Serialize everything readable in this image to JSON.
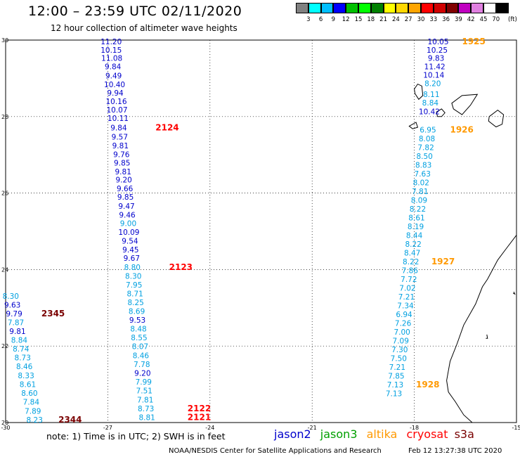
{
  "title": "12:00 – 23:59 UTC 02/11/2020",
  "subtitle": "12 hour collection of altimeter wave heights",
  "legend": {
    "colors": [
      "#808080",
      "#00ffff",
      "#00bfff",
      "#0000ff",
      "#00c000",
      "#00ff00",
      "#008000",
      "#ffff00",
      "#ffd700",
      "#ffa500",
      "#ff0000",
      "#d00000",
      "#800000",
      "#c000c0",
      "#e080e0",
      "#ffffff",
      "#000000"
    ],
    "labels": [
      "3",
      "6",
      "9",
      "12",
      "15",
      "18",
      "21",
      "24",
      "27",
      "30",
      "33",
      "36",
      "39",
      "42",
      "45",
      "70"
    ],
    "unit": "(ft)"
  },
  "axes": {
    "x_ticks": [
      "-30",
      "-27",
      "-24",
      "-21",
      "-18",
      "-15"
    ],
    "y_ticks": [
      "30",
      "28",
      "26",
      "24",
      "22",
      "20"
    ]
  },
  "colors": {
    "jason2": "#0000cc",
    "jason3": "#00a000",
    "altika": "#ff9900",
    "cryosat": "#ff0000",
    "s3a": "#7a0000",
    "light": "#00a0e0"
  },
  "tracks": [
    {
      "name": "track-2124-2123",
      "color": "jason2",
      "points": [
        {
          "lon": -26.9,
          "lat": 29.96,
          "v": "11.20",
          "c": "jason2"
        },
        {
          "lon": -26.9,
          "lat": 29.74,
          "v": "10.15",
          "c": "jason2"
        },
        {
          "lon": -26.88,
          "lat": 29.53,
          "v": "11.08",
          "c": "jason2"
        },
        {
          "lon": -26.85,
          "lat": 29.31,
          "v": "9.84",
          "c": "jason2"
        },
        {
          "lon": -26.83,
          "lat": 29.07,
          "v": "9.49",
          "c": "jason2"
        },
        {
          "lon": -26.8,
          "lat": 28.84,
          "v": "10.40",
          "c": "jason2"
        },
        {
          "lon": -26.78,
          "lat": 28.62,
          "v": "9.94",
          "c": "jason2"
        },
        {
          "lon": -26.75,
          "lat": 28.4,
          "v": "10.16",
          "c": "jason2"
        },
        {
          "lon": -26.73,
          "lat": 28.18,
          "v": "10.07",
          "c": "jason2"
        },
        {
          "lon": -26.7,
          "lat": 27.96,
          "v": "10.11",
          "c": "jason2"
        },
        {
          "lon": -26.68,
          "lat": 27.71,
          "v": "9.84",
          "c": "jason2"
        },
        {
          "lon": -26.65,
          "lat": 27.47,
          "v": "9.57",
          "c": "jason2"
        },
        {
          "lon": -26.63,
          "lat": 27.24,
          "v": "9.81",
          "c": "jason2"
        },
        {
          "lon": -26.6,
          "lat": 27.01,
          "v": "9.76",
          "c": "jason2"
        },
        {
          "lon": -26.58,
          "lat": 26.79,
          "v": "9.85",
          "c": "jason2"
        },
        {
          "lon": -26.55,
          "lat": 26.56,
          "v": "9.81",
          "c": "jason2"
        },
        {
          "lon": -26.53,
          "lat": 26.35,
          "v": "9.20",
          "c": "jason2"
        },
        {
          "lon": -26.5,
          "lat": 26.12,
          "v": "9.66",
          "c": "jason2"
        },
        {
          "lon": -26.48,
          "lat": 25.9,
          "v": "9.85",
          "c": "jason2"
        },
        {
          "lon": -26.45,
          "lat": 25.66,
          "v": "9.47",
          "c": "jason2"
        },
        {
          "lon": -26.43,
          "lat": 25.43,
          "v": "9.46",
          "c": "jason2"
        },
        {
          "lon": -26.4,
          "lat": 25.21,
          "v": "9.00",
          "c": "light"
        },
        {
          "lon": -26.38,
          "lat": 24.98,
          "v": "10.09",
          "c": "jason2"
        },
        {
          "lon": -26.35,
          "lat": 24.75,
          "v": "9.54",
          "c": "jason2"
        },
        {
          "lon": -26.33,
          "lat": 24.52,
          "v": "9.45",
          "c": "jason2"
        },
        {
          "lon": -26.3,
          "lat": 24.3,
          "v": "9.67",
          "c": "jason2"
        },
        {
          "lon": -26.28,
          "lat": 24.06,
          "v": "8.80",
          "c": "light"
        },
        {
          "lon": -26.25,
          "lat": 23.83,
          "v": "8.30",
          "c": "light"
        },
        {
          "lon": -26.23,
          "lat": 23.6,
          "v": "7.95",
          "c": "light"
        },
        {
          "lon": -26.2,
          "lat": 23.37,
          "v": "8.71",
          "c": "light"
        },
        {
          "lon": -26.18,
          "lat": 23.14,
          "v": "8.25",
          "c": "light"
        },
        {
          "lon": -26.15,
          "lat": 22.91,
          "v": "8.69",
          "c": "light"
        },
        {
          "lon": -26.13,
          "lat": 22.68,
          "v": "9.53",
          "c": "jason2"
        },
        {
          "lon": -26.1,
          "lat": 22.45,
          "v": "8.48",
          "c": "light"
        },
        {
          "lon": -26.08,
          "lat": 22.22,
          "v": "8.55",
          "c": "light"
        },
        {
          "lon": -26.05,
          "lat": 21.99,
          "v": "8.07",
          "c": "light"
        },
        {
          "lon": -26.03,
          "lat": 21.76,
          "v": "8.46",
          "c": "light"
        },
        {
          "lon": -26.0,
          "lat": 21.53,
          "v": "7.78",
          "c": "light"
        },
        {
          "lon": -25.98,
          "lat": 21.3,
          "v": "9.20",
          "c": "jason2"
        },
        {
          "lon": -25.95,
          "lat": 21.07,
          "v": "7.99",
          "c": "light"
        },
        {
          "lon": -25.93,
          "lat": 20.84,
          "v": "7.51",
          "c": "light"
        },
        {
          "lon": -25.9,
          "lat": 20.6,
          "v": "7.81",
          "c": "light"
        },
        {
          "lon": -25.88,
          "lat": 20.37,
          "v": "8.73",
          "c": "light"
        },
        {
          "lon": -25.85,
          "lat": 20.14,
          "v": "8.81",
          "c": "light"
        }
      ],
      "labels": [
        {
          "lon": -25.6,
          "lat": 27.71,
          "v": "2124",
          "c": "cryosat"
        },
        {
          "lon": -25.2,
          "lat": 24.06,
          "v": "2123",
          "c": "cryosat"
        },
        {
          "lon": -24.66,
          "lat": 20.37,
          "v": "2122",
          "c": "cryosat"
        },
        {
          "lon": -24.66,
          "lat": 20.14,
          "v": "2121",
          "c": "cryosat"
        }
      ]
    },
    {
      "name": "track-2345-2344",
      "color": "s3a",
      "points": [
        {
          "lon": -29.85,
          "lat": 23.31,
          "v": "8.30",
          "c": "light"
        },
        {
          "lon": -29.8,
          "lat": 23.08,
          "v": "9.63",
          "c": "jason2"
        },
        {
          "lon": -29.75,
          "lat": 22.85,
          "v": "9.79",
          "c": "jason2"
        },
        {
          "lon": -29.7,
          "lat": 22.62,
          "v": "7.87",
          "c": "light"
        },
        {
          "lon": -29.65,
          "lat": 22.39,
          "v": "9.81",
          "c": "jason2"
        },
        {
          "lon": -29.6,
          "lat": 22.16,
          "v": "8.84",
          "c": "light"
        },
        {
          "lon": -29.55,
          "lat": 21.93,
          "v": "8.74",
          "c": "light"
        },
        {
          "lon": -29.5,
          "lat": 21.7,
          "v": "8.73",
          "c": "light"
        },
        {
          "lon": -29.45,
          "lat": 21.47,
          "v": "8.46",
          "c": "light"
        },
        {
          "lon": -29.4,
          "lat": 21.23,
          "v": "8.33",
          "c": "light"
        },
        {
          "lon": -29.35,
          "lat": 21.0,
          "v": "8.61",
          "c": "light"
        },
        {
          "lon": -29.3,
          "lat": 20.77,
          "v": "8.60",
          "c": "light"
        },
        {
          "lon": -29.25,
          "lat": 20.54,
          "v": "7.84",
          "c": "light"
        },
        {
          "lon": -29.2,
          "lat": 20.3,
          "v": "7.89",
          "c": "light"
        },
        {
          "lon": -29.15,
          "lat": 20.07,
          "v": "8.23",
          "c": "light"
        }
      ],
      "labels": [
        {
          "lon": -28.95,
          "lat": 22.85,
          "v": "2345",
          "c": "s3a"
        },
        {
          "lon": -28.45,
          "lat": 20.07,
          "v": "2344",
          "c": "s3a"
        }
      ]
    },
    {
      "name": "track-1925-1928",
      "color": "altika",
      "points": [
        {
          "lon": -17.3,
          "lat": 29.96,
          "v": "10.05",
          "c": "jason2"
        },
        {
          "lon": -17.33,
          "lat": 29.74,
          "v": "10.25",
          "c": "jason2"
        },
        {
          "lon": -17.36,
          "lat": 29.53,
          "v": "9.83",
          "c": "jason2"
        },
        {
          "lon": -17.4,
          "lat": 29.31,
          "v": "11.42",
          "c": "jason2"
        },
        {
          "lon": -17.43,
          "lat": 29.09,
          "v": "10.14",
          "c": "jason2"
        },
        {
          "lon": -17.46,
          "lat": 28.87,
          "v": "8.20",
          "c": "light"
        },
        {
          "lon": -17.5,
          "lat": 28.58,
          "v": "8.11",
          "c": "light"
        },
        {
          "lon": -17.53,
          "lat": 28.36,
          "v": "8.84",
          "c": "light"
        },
        {
          "lon": -17.56,
          "lat": 28.13,
          "v": "10.42",
          "c": "jason2"
        },
        {
          "lon": -17.6,
          "lat": 27.66,
          "v": "6.95",
          "c": "light"
        },
        {
          "lon": -17.63,
          "lat": 27.43,
          "v": "8.08",
          "c": "light"
        },
        {
          "lon": -17.66,
          "lat": 27.2,
          "v": "7.82",
          "c": "light"
        },
        {
          "lon": -17.7,
          "lat": 26.97,
          "v": "8.50",
          "c": "light"
        },
        {
          "lon": -17.73,
          "lat": 26.74,
          "v": "8.83",
          "c": "light"
        },
        {
          "lon": -17.76,
          "lat": 26.51,
          "v": "7.63",
          "c": "light"
        },
        {
          "lon": -17.8,
          "lat": 26.28,
          "v": "8.02",
          "c": "light"
        },
        {
          "lon": -17.83,
          "lat": 26.05,
          "v": "7.81",
          "c": "light"
        },
        {
          "lon": -17.86,
          "lat": 25.82,
          "v": "8.09",
          "c": "light"
        },
        {
          "lon": -17.9,
          "lat": 25.59,
          "v": "8.22",
          "c": "light"
        },
        {
          "lon": -17.93,
          "lat": 25.36,
          "v": "8.61",
          "c": "light"
        },
        {
          "lon": -17.96,
          "lat": 25.13,
          "v": "8.19",
          "c": "light"
        },
        {
          "lon": -18.0,
          "lat": 24.9,
          "v": "8.44",
          "c": "light"
        },
        {
          "lon": -18.03,
          "lat": 24.67,
          "v": "8.22",
          "c": "light"
        },
        {
          "lon": -18.06,
          "lat": 24.44,
          "v": "8.47",
          "c": "light"
        },
        {
          "lon": -18.1,
          "lat": 24.21,
          "v": "8.22",
          "c": "light"
        },
        {
          "lon": -18.13,
          "lat": 23.98,
          "v": "7.86",
          "c": "light"
        },
        {
          "lon": -18.16,
          "lat": 23.75,
          "v": "7.72",
          "c": "light"
        },
        {
          "lon": -18.2,
          "lat": 23.52,
          "v": "7.02",
          "c": "light"
        },
        {
          "lon": -18.23,
          "lat": 23.29,
          "v": "7.21",
          "c": "light"
        },
        {
          "lon": -18.26,
          "lat": 23.06,
          "v": "7.34",
          "c": "light"
        },
        {
          "lon": -18.3,
          "lat": 22.83,
          "v": "6.94",
          "c": "light"
        },
        {
          "lon": -18.33,
          "lat": 22.6,
          "v": "7.26",
          "c": "light"
        },
        {
          "lon": -18.36,
          "lat": 22.37,
          "v": "7.00",
          "c": "light"
        },
        {
          "lon": -18.4,
          "lat": 22.14,
          "v": "7.09",
          "c": "light"
        },
        {
          "lon": -18.43,
          "lat": 21.91,
          "v": "7.30",
          "c": "light"
        },
        {
          "lon": -18.46,
          "lat": 21.68,
          "v": "7.50",
          "c": "light"
        },
        {
          "lon": -18.5,
          "lat": 21.45,
          "v": "7.21",
          "c": "light"
        },
        {
          "lon": -18.53,
          "lat": 21.22,
          "v": "7.85",
          "c": "light"
        },
        {
          "lon": -18.56,
          "lat": 20.99,
          "v": "7.13",
          "c": "light"
        },
        {
          "lon": -18.6,
          "lat": 20.76,
          "v": "7.13",
          "c": "light"
        }
      ],
      "labels": [
        {
          "lon": -16.6,
          "lat": 29.96,
          "v": "1925",
          "c": "altika"
        },
        {
          "lon": -16.95,
          "lat": 27.66,
          "v": "1926",
          "c": "altika"
        },
        {
          "lon": -17.5,
          "lat": 24.21,
          "v": "1927",
          "c": "altika"
        },
        {
          "lon": -17.95,
          "lat": 20.99,
          "v": "1928",
          "c": "altika"
        }
      ]
    }
  ],
  "footer": {
    "note": "note: 1) Time is in UTC; 2) SWH is in feet",
    "sats": [
      {
        "label": "jason2",
        "c": "jason2"
      },
      {
        "label": "jason3",
        "c": "jason3"
      },
      {
        "label": "altika",
        "c": "altika"
      },
      {
        "label": "cryosat",
        "c": "cryosat"
      },
      {
        "label": "s3a",
        "c": "s3a"
      }
    ],
    "credit": "NOAA/NESDIS Center for Satellite Applications and Research",
    "stamp": "Feb 12 13:27:38 UTC 2020"
  }
}
